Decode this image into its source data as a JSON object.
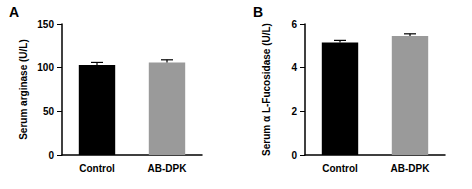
{
  "chart_data": [
    {
      "type": "bar",
      "title": "A",
      "y_label": "Serum arginase (U/L)",
      "categories": [
        "Control",
        "AB-DPK"
      ],
      "values": [
        103,
        106
      ],
      "errors": [
        3,
        3
      ],
      "colors": [
        "#000000",
        "#9a9a9a"
      ],
      "ylim": [
        0,
        150
      ],
      "yticks": [
        0,
        50,
        100,
        150
      ],
      "grid": false
    },
    {
      "type": "bar",
      "title": "B",
      "y_label": "Serum α L-Fucosidase (U/L)",
      "categories": [
        "Control",
        "AB-DPK"
      ],
      "values": [
        5.15,
        5.45
      ],
      "errors": [
        0.1,
        0.1
      ],
      "colors": [
        "#000000",
        "#9a9a9a"
      ],
      "ylim": [
        0,
        6
      ],
      "yticks": [
        0,
        2,
        4,
        6
      ],
      "grid": false
    }
  ]
}
